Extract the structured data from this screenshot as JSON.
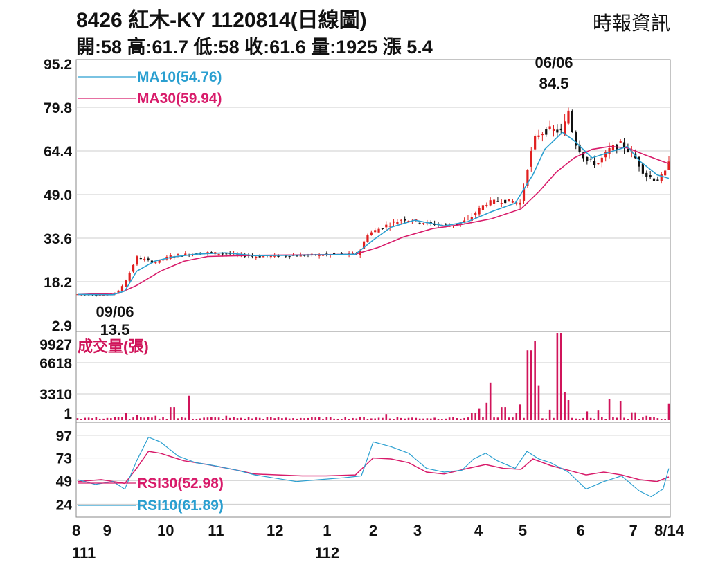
{
  "header": {
    "title": "8426  紅木-KY 1120814(日線圖)",
    "source": "時報資訊",
    "ohlc_line": "開:58 高:61.7 低:58 收:61.6 量:1925 漲 5.4"
  },
  "colors": {
    "up": "#e02020",
    "down": "#111111",
    "ma10": "#2a9fd0",
    "ma30": "#d81b6a",
    "volume": "#d0145a",
    "rsi10": "#2a9fd0",
    "rsi30": "#d81b6a",
    "grid": "#cccccc"
  },
  "chart_data": [
    {
      "type": "line",
      "panel": "price",
      "ylim": [
        2.9,
        95.2
      ],
      "y_ticks": [
        "95.2",
        "79.8",
        "64.4",
        "49.0",
        "33.6",
        "18.2",
        "2.9"
      ],
      "legend": [
        "MA10(54.76)",
        "MA30(59.94)"
      ],
      "annotations": [
        {
          "date": "06/06",
          "value": "84.5",
          "position": "above"
        },
        {
          "date": "09/06",
          "value": "13.5",
          "position": "below"
        }
      ],
      "x_month_positions": [
        0,
        0.05,
        0.149,
        0.234,
        0.334,
        0.422,
        0.5,
        0.575,
        0.678,
        0.753,
        0.851,
        0.94,
        1.0
      ],
      "price_path": [
        [
          0,
          13.8
        ],
        [
          0.05,
          13.6
        ],
        [
          0.07,
          15
        ],
        [
          0.085,
          20
        ],
        [
          0.1,
          27
        ],
        [
          0.13,
          25
        ],
        [
          0.16,
          27.5
        ],
        [
          0.19,
          28
        ],
        [
          0.22,
          28.5
        ],
        [
          0.26,
          28
        ],
        [
          0.3,
          27.2
        ],
        [
          0.36,
          27.5
        ],
        [
          0.42,
          27.8
        ],
        [
          0.475,
          28.2
        ],
        [
          0.49,
          35
        ],
        [
          0.52,
          38
        ],
        [
          0.55,
          40.5
        ],
        [
          0.59,
          39
        ],
        [
          0.63,
          38
        ],
        [
          0.66,
          40
        ],
        [
          0.69,
          46
        ],
        [
          0.72,
          47
        ],
        [
          0.75,
          46
        ],
        [
          0.76,
          58
        ],
        [
          0.775,
          70
        ],
        [
          0.8,
          72
        ],
        [
          0.82,
          71
        ],
        [
          0.83,
          79
        ],
        [
          0.84,
          68
        ],
        [
          0.86,
          61
        ],
        [
          0.88,
          60
        ],
        [
          0.9,
          65
        ],
        [
          0.92,
          67
        ],
        [
          0.94,
          63
        ],
        [
          0.96,
          56
        ],
        [
          0.98,
          54
        ],
        [
          0.995,
          57
        ],
        [
          1.0,
          61.6
        ]
      ],
      "ma10_path": [
        [
          0,
          13.8
        ],
        [
          0.06,
          13.7
        ],
        [
          0.08,
          15
        ],
        [
          0.1,
          22
        ],
        [
          0.13,
          25.5
        ],
        [
          0.16,
          27
        ],
        [
          0.2,
          28
        ],
        [
          0.25,
          28.5
        ],
        [
          0.3,
          27.5
        ],
        [
          0.36,
          27.6
        ],
        [
          0.42,
          27.8
        ],
        [
          0.47,
          28
        ],
        [
          0.5,
          33
        ],
        [
          0.53,
          37.5
        ],
        [
          0.57,
          40
        ],
        [
          0.62,
          38
        ],
        [
          0.66,
          39.5
        ],
        [
          0.7,
          43
        ],
        [
          0.74,
          46
        ],
        [
          0.77,
          56
        ],
        [
          0.79,
          65
        ],
        [
          0.82,
          71
        ],
        [
          0.84,
          68
        ],
        [
          0.87,
          62
        ],
        [
          0.9,
          64
        ],
        [
          0.93,
          66
        ],
        [
          0.95,
          61
        ],
        [
          0.98,
          56
        ],
        [
          1.0,
          54.76
        ]
      ],
      "ma30_path": [
        [
          0,
          13.8
        ],
        [
          0.07,
          14.2
        ],
        [
          0.1,
          17
        ],
        [
          0.14,
          22
        ],
        [
          0.18,
          25.5
        ],
        [
          0.22,
          27.2
        ],
        [
          0.3,
          27.6
        ],
        [
          0.4,
          27.8
        ],
        [
          0.47,
          28
        ],
        [
          0.51,
          30.5
        ],
        [
          0.55,
          34
        ],
        [
          0.6,
          37
        ],
        [
          0.65,
          38.5
        ],
        [
          0.7,
          40.5
        ],
        [
          0.75,
          44
        ],
        [
          0.78,
          50
        ],
        [
          0.81,
          57
        ],
        [
          0.84,
          62
        ],
        [
          0.87,
          65
        ],
        [
          0.9,
          66
        ],
        [
          0.93,
          65.5
        ],
        [
          0.96,
          63
        ],
        [
          1.0,
          59.94
        ]
      ]
    },
    {
      "type": "bar",
      "panel": "volume",
      "label": "成交量(張)",
      "ylim": [
        1,
        9927
      ],
      "y_ticks": [
        "9927",
        "6618",
        "3310",
        "1"
      ],
      "spikes": [
        [
          0.08,
          800
        ],
        [
          0.1,
          600
        ],
        [
          0.13,
          500
        ],
        [
          0.16,
          1500
        ],
        [
          0.19,
          2800
        ],
        [
          0.25,
          500
        ],
        [
          0.48,
          400
        ],
        [
          0.52,
          700
        ],
        [
          0.63,
          300
        ],
        [
          0.67,
          800
        ],
        [
          0.68,
          1300
        ],
        [
          0.69,
          2000
        ],
        [
          0.7,
          4300
        ],
        [
          0.72,
          1500
        ],
        [
          0.74,
          800
        ],
        [
          0.75,
          1800
        ],
        [
          0.76,
          3000
        ],
        [
          0.765,
          8000
        ],
        [
          0.775,
          9100
        ],
        [
          0.78,
          4000
        ],
        [
          0.8,
          1200
        ],
        [
          0.815,
          10000
        ],
        [
          0.825,
          3200
        ],
        [
          0.83,
          2300
        ],
        [
          0.86,
          1000
        ],
        [
          0.88,
          1100
        ],
        [
          0.9,
          2400
        ],
        [
          0.92,
          2200
        ],
        [
          0.94,
          900
        ],
        [
          0.96,
          500
        ],
        [
          1.0,
          1925
        ]
      ]
    },
    {
      "type": "line",
      "panel": "rsi",
      "ylim": [
        14,
        105
      ],
      "y_ticks": [
        "97",
        "73",
        "49",
        "24"
      ],
      "legend": [
        "RSI30(52.98)",
        "RSI10(61.89)"
      ],
      "x_tick_labels": [
        "8",
        "9",
        "10",
        "11",
        "12",
        "1",
        "2",
        "3",
        "4",
        "5",
        "6",
        "7",
        "8/14"
      ],
      "x_year_labels": [
        {
          "label": "111",
          "at": 0
        },
        {
          "label": "112",
          "at": 0.422
        }
      ],
      "rsi10_path": [
        [
          0,
          50
        ],
        [
          0.03,
          45
        ],
        [
          0.06,
          48
        ],
        [
          0.08,
          40
        ],
        [
          0.1,
          70
        ],
        [
          0.12,
          95
        ],
        [
          0.14,
          90
        ],
        [
          0.17,
          75
        ],
        [
          0.2,
          68
        ],
        [
          0.23,
          65
        ],
        [
          0.27,
          60
        ],
        [
          0.3,
          55
        ],
        [
          0.33,
          52
        ],
        [
          0.37,
          48
        ],
        [
          0.41,
          50
        ],
        [
          0.45,
          52
        ],
        [
          0.48,
          54
        ],
        [
          0.5,
          90
        ],
        [
          0.53,
          85
        ],
        [
          0.56,
          78
        ],
        [
          0.59,
          62
        ],
        [
          0.62,
          58
        ],
        [
          0.65,
          60
        ],
        [
          0.67,
          72
        ],
        [
          0.69,
          78
        ],
        [
          0.71,
          70
        ],
        [
          0.74,
          62
        ],
        [
          0.76,
          80
        ],
        [
          0.78,
          72
        ],
        [
          0.8,
          68
        ],
        [
          0.83,
          58
        ],
        [
          0.86,
          40
        ],
        [
          0.89,
          48
        ],
        [
          0.92,
          54
        ],
        [
          0.95,
          38
        ],
        [
          0.97,
          32
        ],
        [
          0.99,
          40
        ],
        [
          1.0,
          61.89
        ]
      ],
      "rsi30_path": [
        [
          0,
          48
        ],
        [
          0.04,
          50
        ],
        [
          0.08,
          46
        ],
        [
          0.1,
          62
        ],
        [
          0.12,
          80
        ],
        [
          0.14,
          78
        ],
        [
          0.18,
          70
        ],
        [
          0.22,
          66
        ],
        [
          0.27,
          60
        ],
        [
          0.3,
          56
        ],
        [
          0.34,
          55
        ],
        [
          0.38,
          54
        ],
        [
          0.42,
          54
        ],
        [
          0.47,
          55
        ],
        [
          0.5,
          73
        ],
        [
          0.53,
          72
        ],
        [
          0.56,
          68
        ],
        [
          0.59,
          58
        ],
        [
          0.62,
          56
        ],
        [
          0.66,
          62
        ],
        [
          0.69,
          66
        ],
        [
          0.72,
          62
        ],
        [
          0.75,
          61
        ],
        [
          0.77,
          72
        ],
        [
          0.8,
          65
        ],
        [
          0.83,
          60
        ],
        [
          0.86,
          55
        ],
        [
          0.89,
          58
        ],
        [
          0.92,
          55
        ],
        [
          0.95,
          50
        ],
        [
          0.98,
          48
        ],
        [
          1.0,
          52.98
        ]
      ]
    }
  ]
}
